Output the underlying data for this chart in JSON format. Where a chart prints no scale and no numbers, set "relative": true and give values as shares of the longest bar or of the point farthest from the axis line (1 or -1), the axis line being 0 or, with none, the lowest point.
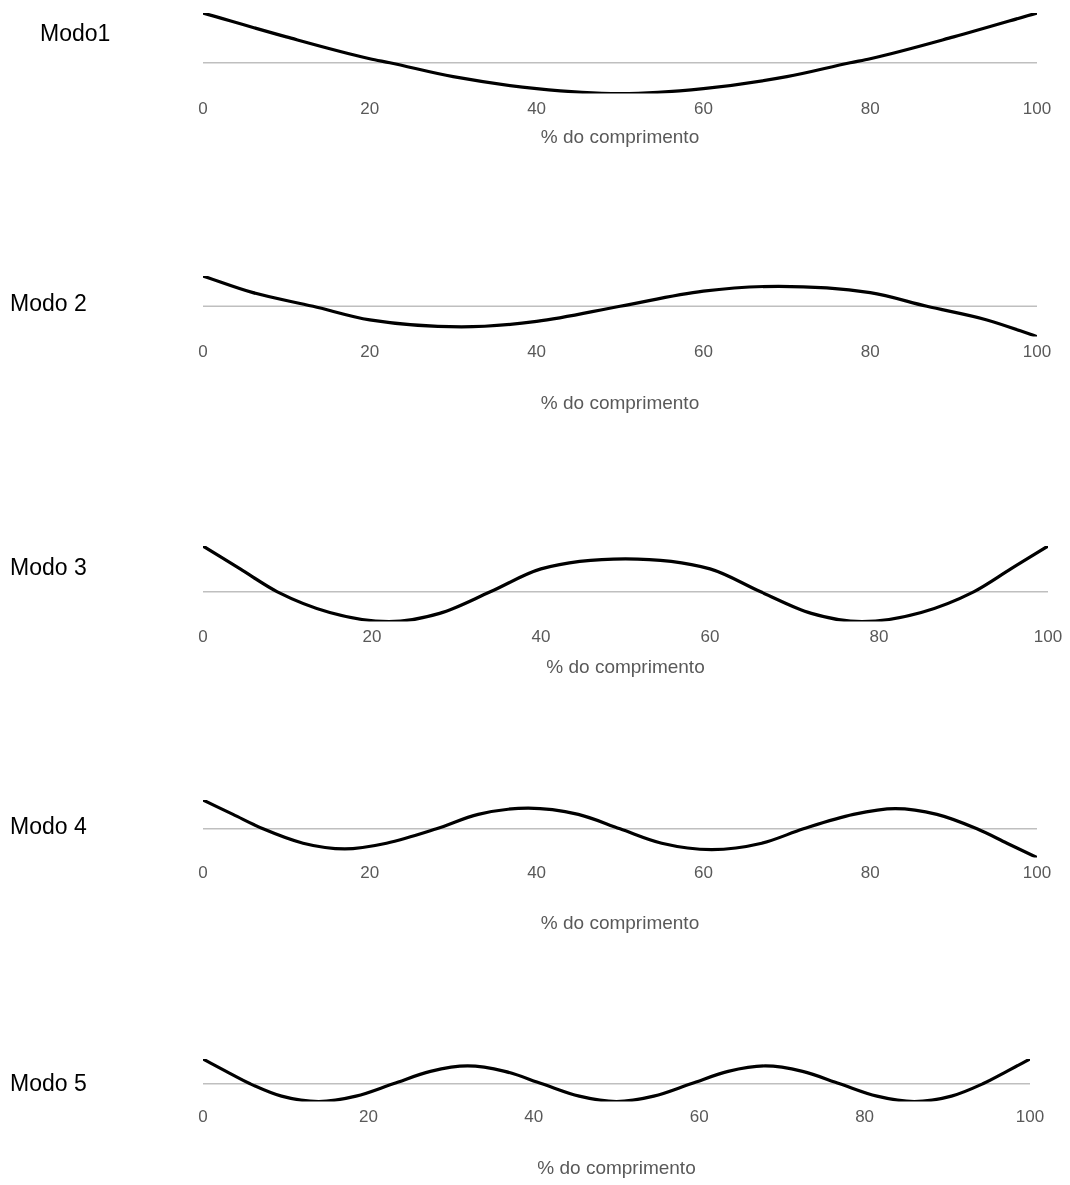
{
  "chart_data": [
    {
      "type": "line",
      "title": "Modo1",
      "xlabel": "% do comprimento",
      "relative": true,
      "color": "#000000",
      "marker": "none",
      "xlim": [
        0,
        100
      ],
      "xticks": [
        0,
        20,
        40,
        60,
        80,
        100
      ],
      "x": [
        0,
        10,
        20,
        22.4,
        30,
        40,
        50,
        60,
        70,
        77.6,
        80,
        90,
        100
      ],
      "values": [
        1,
        0.52,
        0.08,
        0,
        -0.28,
        -0.52,
        -0.62,
        -0.52,
        -0.28,
        0,
        0.08,
        0.52,
        1
      ]
    },
    {
      "type": "line",
      "title": "Modo 2",
      "xlabel": "% do comprimento",
      "relative": true,
      "color": "#000000",
      "marker": "none",
      "xlim": [
        0,
        100
      ],
      "xticks": [
        0,
        20,
        40,
        60,
        80,
        100
      ],
      "x": [
        0,
        6,
        13.2,
        20,
        31,
        40,
        50,
        60,
        69,
        80,
        86.8,
        94,
        100
      ],
      "values": [
        1,
        0.45,
        0,
        -0.45,
        -0.68,
        -0.5,
        0,
        0.5,
        0.66,
        0.45,
        0,
        -0.45,
        -1
      ]
    },
    {
      "type": "line",
      "title": "Modo 3",
      "xlabel": "% do comprimento",
      "relative": true,
      "color": "#000000",
      "marker": "none",
      "xlim": [
        0,
        100
      ],
      "xticks": [
        0,
        20,
        40,
        60,
        80,
        100
      ],
      "x": [
        0,
        4.4,
        8.8,
        15,
        22,
        28,
        34,
        40,
        50,
        60,
        66,
        72,
        78,
        85,
        91.2,
        95.6,
        100
      ],
      "values": [
        1,
        0.5,
        0,
        -0.45,
        -0.65,
        -0.47,
        0,
        0.5,
        0.72,
        0.5,
        0,
        -0.47,
        -0.65,
        -0.45,
        0,
        0.5,
        1
      ]
    },
    {
      "type": "line",
      "title": "Modo 4",
      "xlabel": "% do comprimento",
      "relative": true,
      "color": "#000000",
      "marker": "none",
      "xlim": [
        0,
        100
      ],
      "xticks": [
        0,
        20,
        40,
        60,
        80,
        100
      ],
      "x": [
        0,
        3.6,
        7.2,
        12,
        17,
        22,
        28,
        33,
        39,
        45,
        50,
        55,
        61,
        67,
        72,
        78,
        83,
        88,
        92.8,
        96.4,
        100
      ],
      "values": [
        1,
        0.5,
        0,
        -0.5,
        -0.7,
        -0.5,
        0,
        0.5,
        0.72,
        0.5,
        0,
        -0.5,
        -0.72,
        -0.5,
        0,
        0.5,
        0.7,
        0.5,
        0,
        -0.5,
        -1
      ]
    },
    {
      "type": "line",
      "title": "Modo 5",
      "xlabel": "% do comprimento",
      "relative": true,
      "color": "#000000",
      "marker": "none",
      "xlim": [
        0,
        100
      ],
      "xticks": [
        0,
        20,
        40,
        60,
        80,
        100
      ],
      "x": [
        0,
        2.8,
        5.7,
        9.5,
        14,
        18.5,
        23,
        27.5,
        32,
        36.5,
        41,
        45.5,
        50,
        54.5,
        59,
        63.5,
        68,
        72.5,
        77,
        81.5,
        86,
        90.5,
        94.3,
        97.2,
        100
      ],
      "values": [
        1,
        0.5,
        0,
        -0.5,
        -0.72,
        -0.5,
        0,
        0.5,
        0.72,
        0.5,
        0,
        -0.5,
        -0.72,
        -0.5,
        0,
        0.5,
        0.72,
        0.5,
        0,
        -0.5,
        -0.72,
        -0.5,
        0,
        0.5,
        1
      ]
    }
  ]
}
